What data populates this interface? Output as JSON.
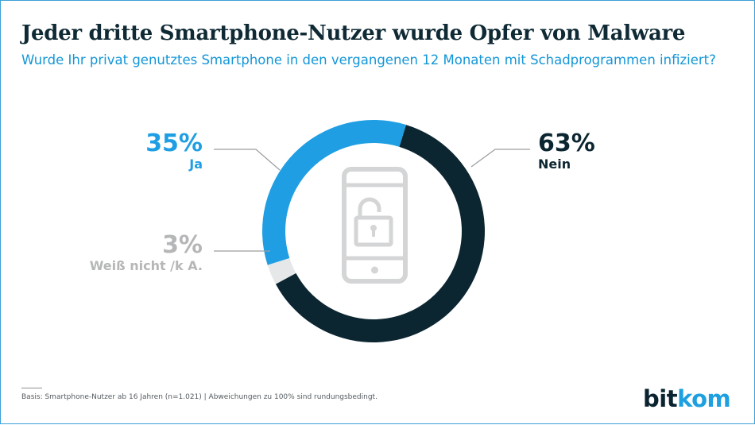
{
  "header": {
    "title": "Jeder dritte Smartphone-Nutzer wurde Opfer von Malware",
    "subtitle": "Wurde Ihr privat genutztes Smartphone in den vergangenen 12 Monaten mit Schadprogrammen infiziert?"
  },
  "chart_data": {
    "type": "pie",
    "variant": "donut",
    "title": "Jeder dritte Smartphone-Nutzer wurde Opfer von Malware",
    "subtitle": "Wurde Ihr privat genutztes Smartphone in den vergangenen 12 Monaten mit Schadprogrammen infiziert?",
    "slices": [
      {
        "label": "Nein",
        "value": 63,
        "display": "63%",
        "color": "#0c2631"
      },
      {
        "label": "Weiß nicht /k A.",
        "value": 3,
        "display": "3%",
        "color": "#e6e7e8"
      },
      {
        "label": "Ja",
        "value": 35,
        "display": "35%",
        "color": "#1f9ee3"
      }
    ],
    "center_icon": "unlocked-smartphone-icon",
    "center_icon_color": "#d4d5d6"
  },
  "footer": {
    "source": "Basis: Smartphone-Nutzer ab 16 Jahren (n=1.021) | Abweichungen zu 100% sind rundungsbedingt.",
    "logo_part1": "bit",
    "logo_part2": "kom",
    "logo_accent_color": "#1ea0e0"
  }
}
